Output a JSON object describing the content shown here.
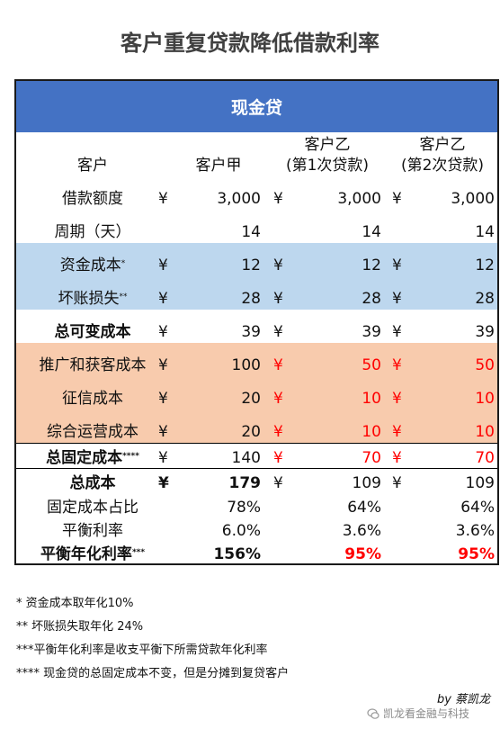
{
  "title": "客户重复贷款降低借款利率",
  "table": {
    "header": "现金贷",
    "columns": {
      "label": "客户",
      "a": "客户甲",
      "b_line1": "客户乙",
      "b_line2": "(第1次贷款)",
      "c_line1": "客户乙",
      "c_line2": "(第2次贷款)"
    },
    "rows": [
      {
        "label": "借款额度",
        "sup": "",
        "a_yen": "¥",
        "a": "3,000",
        "b_yen": "¥",
        "b": "3,000",
        "c_yen": "¥",
        "c": "3,000",
        "bold_label": false,
        "bold_a": false,
        "red_bc": false,
        "band": "none"
      },
      {
        "label": "周期（天）",
        "sup": "",
        "a_yen": "",
        "a": "14",
        "b_yen": "",
        "b": "14",
        "c_yen": "",
        "c": "14",
        "bold_label": false,
        "bold_a": false,
        "red_bc": false,
        "band": "none"
      },
      {
        "label": "资金成本",
        "sup": "*",
        "a_yen": "¥",
        "a": "12",
        "b_yen": "¥",
        "b": "12",
        "c_yen": "¥",
        "c": "12",
        "bold_label": false,
        "bold_a": false,
        "red_bc": false,
        "band": "blue"
      },
      {
        "label": "坏账损失",
        "sup": "**",
        "a_yen": "¥",
        "a": "28",
        "b_yen": "¥",
        "b": "28",
        "c_yen": "¥",
        "c": "28",
        "bold_label": false,
        "bold_a": false,
        "red_bc": false,
        "band": "blue"
      },
      {
        "label": "总可变成本",
        "sup": "",
        "a_yen": "¥",
        "a": "39",
        "b_yen": "¥",
        "b": "39",
        "c_yen": "¥",
        "c": "39",
        "bold_label": true,
        "bold_a": false,
        "red_bc": false,
        "band": "none"
      },
      {
        "label": "推广和获客成本",
        "sup": "",
        "a_yen": "¥",
        "a": "100",
        "b_yen": "¥",
        "b": "50",
        "c_yen": "¥",
        "c": "50",
        "bold_label": false,
        "bold_a": false,
        "red_bc": true,
        "band": "orange"
      },
      {
        "label": "征信成本",
        "sup": "",
        "a_yen": "¥",
        "a": "20",
        "b_yen": "¥",
        "b": "10",
        "c_yen": "¥",
        "c": "10",
        "bold_label": false,
        "bold_a": false,
        "red_bc": true,
        "band": "orange"
      },
      {
        "label": "综合运营成本",
        "sup": "",
        "a_yen": "¥",
        "a": "20",
        "b_yen": "¥",
        "b": "10",
        "c_yen": "¥",
        "c": "10",
        "bold_label": false,
        "bold_a": false,
        "red_bc": true,
        "band": "orange"
      },
      {
        "label": "总固定成本",
        "sup": "****",
        "a_yen": "¥",
        "a": "140",
        "b_yen": "¥",
        "b": "70",
        "c_yen": "¥",
        "c": "70",
        "bold_label": true,
        "bold_a": false,
        "red_bc": true,
        "band": "none"
      },
      {
        "label": "总成本",
        "sup": "",
        "a_yen": "¥",
        "a": "179",
        "b_yen": "¥",
        "b": "109",
        "c_yen": "¥",
        "c": "109",
        "bold_label": true,
        "bold_a": true,
        "red_bc": false,
        "band": "none"
      },
      {
        "label": "固定成本占比",
        "sup": "",
        "a_yen": "",
        "a": "78%",
        "b_yen": "",
        "b": "64%",
        "c_yen": "",
        "c": "64%",
        "bold_label": false,
        "bold_a": false,
        "red_bc": false,
        "band": "none"
      },
      {
        "label": "平衡利率",
        "sup": "",
        "a_yen": "",
        "a": "6.0%",
        "b_yen": "",
        "b": "3.6%",
        "c_yen": "",
        "c": "3.6%",
        "bold_label": false,
        "bold_a": false,
        "red_bc": false,
        "band": "none"
      },
      {
        "label": "平衡年化利率",
        "sup": "***",
        "a_yen": "",
        "a": "156%",
        "b_yen": "",
        "b": "95%",
        "c_yen": "",
        "c": "95%",
        "bold_label": true,
        "bold_a": true,
        "red_bc": true,
        "bold_bc": true,
        "band": "none"
      }
    ]
  },
  "notes": [
    "* 资金成本取年化10%",
    "** 坏账损失取年化 24%",
    "***平衡年化利率是收支平衡下所需贷款年化利率",
    "**** 现金贷的总固定成本不变，但是分摊到复贷客户"
  ],
  "byline": "by 蔡凯龙",
  "watermark": "凯龙看金融与科技",
  "watermark_icon": "wechat-icon"
}
